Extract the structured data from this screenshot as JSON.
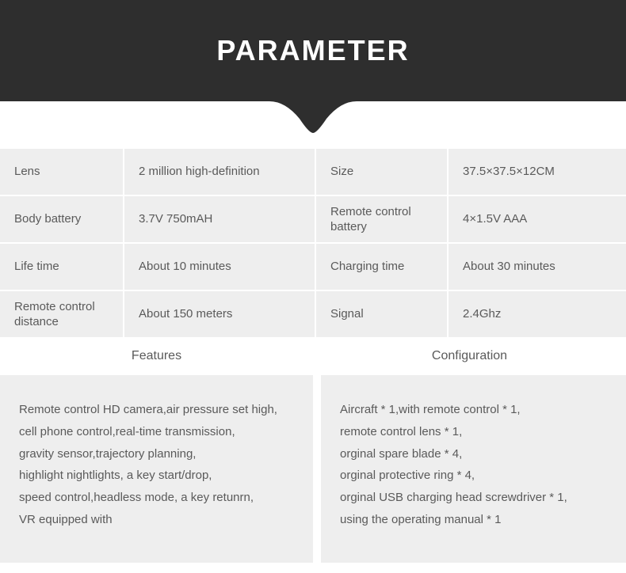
{
  "colors": {
    "header_bg": "#2e2e2e",
    "header_text": "#ffffff",
    "cell_bg": "#eeeeee",
    "cell_text": "#5a5a5a",
    "page_bg": "#ffffff"
  },
  "typography": {
    "title_fontsize": 36,
    "title_weight": 700,
    "body_fontsize": 15,
    "subhead_fontsize": 16
  },
  "header": {
    "title": "PARAMETER"
  },
  "specs": [
    {
      "label": "Lens",
      "value": "2 million high-definition"
    },
    {
      "label": "Size",
      "value": "37.5×37.5×12CM"
    },
    {
      "label": "Body battery",
      "value": "3.7V 750mAH"
    },
    {
      "label": "Remote control battery",
      "value": "4×1.5V AAA"
    },
    {
      "label": "Life time",
      "value": "About 10 minutes"
    },
    {
      "label": "Charging time",
      "value": "About 30 minutes"
    },
    {
      "label": "Remote control distance",
      "value": "About 150 meters"
    },
    {
      "label": "Signal",
      "value": "2.4Ghz"
    }
  ],
  "sections": {
    "features": {
      "title": "Features",
      "body": "Remote control HD camera,air pressure set high,\ncell phone control,real-time transmission,\ngravity sensor,trajectory planning,\nhighlight nightlights, a key start/drop,\nspeed control,headless mode, a key retunrn,\nVR equipped with"
    },
    "configuration": {
      "title": "Configuration",
      "body": "Aircraft * 1,with remote control * 1,\nremote control lens * 1,\norginal spare blade * 4,\norginal protective ring * 4,\norginal USB charging head screwdriver * 1,\nusing the operating manual * 1"
    }
  }
}
